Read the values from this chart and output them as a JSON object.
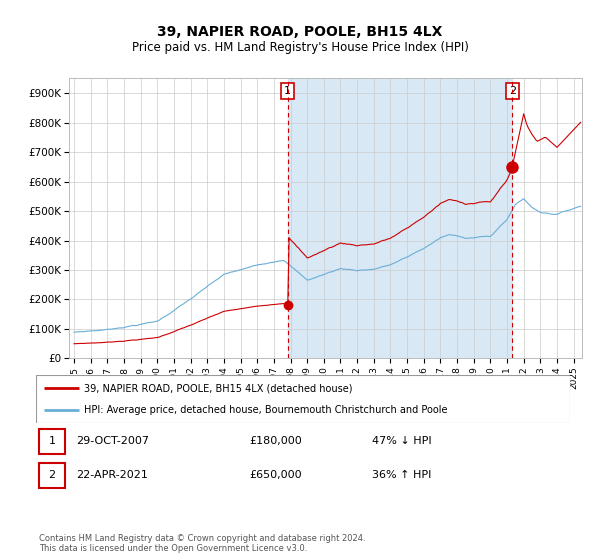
{
  "title": "39, NAPIER ROAD, POOLE, BH15 4LX",
  "subtitle": "Price paid vs. HM Land Registry's House Price Index (HPI)",
  "title_fontsize": 10,
  "subtitle_fontsize": 8.5,
  "sale1": {
    "date_num": 2007.83,
    "price": 180000,
    "label": "1",
    "date_str": "29-OCT-2007",
    "pct": "47% ↓ HPI"
  },
  "sale2": {
    "date_num": 2021.31,
    "price": 650000,
    "label": "2",
    "date_str": "22-APR-2021",
    "pct": "36% ↑ HPI"
  },
  "ylabel_ticks": [
    "£0",
    "£100K",
    "£200K",
    "£300K",
    "£400K",
    "£500K",
    "£600K",
    "£700K",
    "£800K",
    "£900K"
  ],
  "ytick_values": [
    0,
    100000,
    200000,
    300000,
    400000,
    500000,
    600000,
    700000,
    800000,
    900000
  ],
  "ylim": [
    0,
    950000
  ],
  "xlim_start": 1994.7,
  "xlim_end": 2025.5,
  "legend_line1": "39, NAPIER ROAD, POOLE, BH15 4LX (detached house)",
  "legend_line2": "HPI: Average price, detached house, Bournemouth Christchurch and Poole",
  "footer": "Contains HM Land Registry data © Crown copyright and database right 2024.\nThis data is licensed under the Open Government Licence v3.0.",
  "hpi_color": "#6aaed6",
  "price_color": "#cc0000",
  "bg_shade_color": "#d8e8f5",
  "grid_color": "#cccccc",
  "box_color": "#cc0000",
  "bg_color": "#ffffff"
}
